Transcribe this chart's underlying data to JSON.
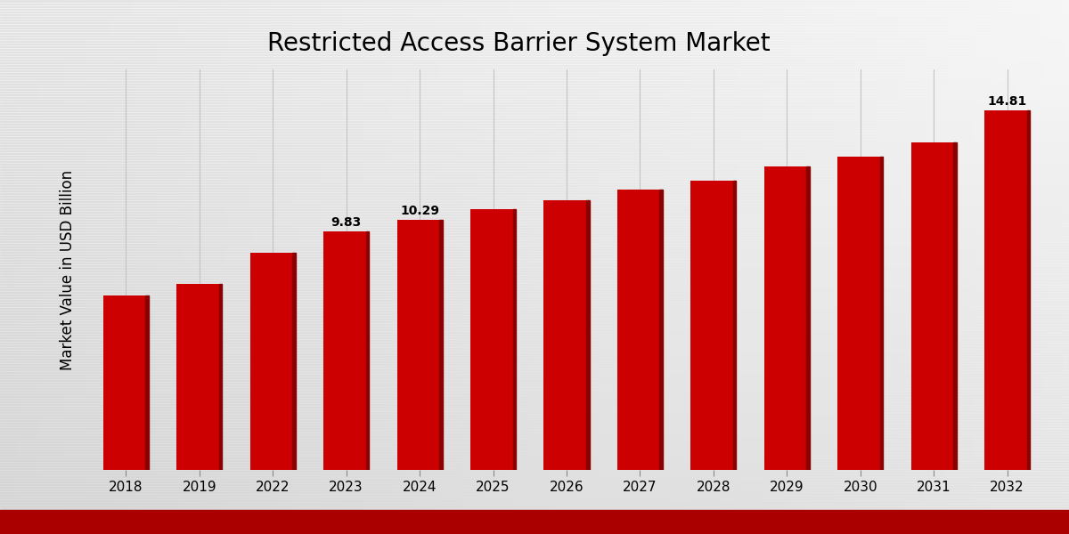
{
  "title": "Restricted Access Barrier System Market",
  "ylabel": "Market Value in USD Billion",
  "categories": [
    "2018",
    "2019",
    "2022",
    "2023",
    "2024",
    "2025",
    "2026",
    "2027",
    "2028",
    "2029",
    "2030",
    "2031",
    "2032"
  ],
  "values": [
    7.2,
    7.65,
    8.95,
    9.83,
    10.29,
    10.75,
    11.1,
    11.55,
    11.9,
    12.5,
    12.9,
    13.5,
    14.81
  ],
  "bar_color": "#CC0000",
  "bar_color_dark": "#8B0000",
  "labeled_bars": {
    "2023": "9.83",
    "2024": "10.29",
    "2032": "14.81"
  },
  "ylim": [
    0,
    16.5
  ],
  "title_fontsize": 20,
  "label_fontsize": 10,
  "tick_fontsize": 11,
  "ylabel_fontsize": 12,
  "footer_color": "#AA0000"
}
